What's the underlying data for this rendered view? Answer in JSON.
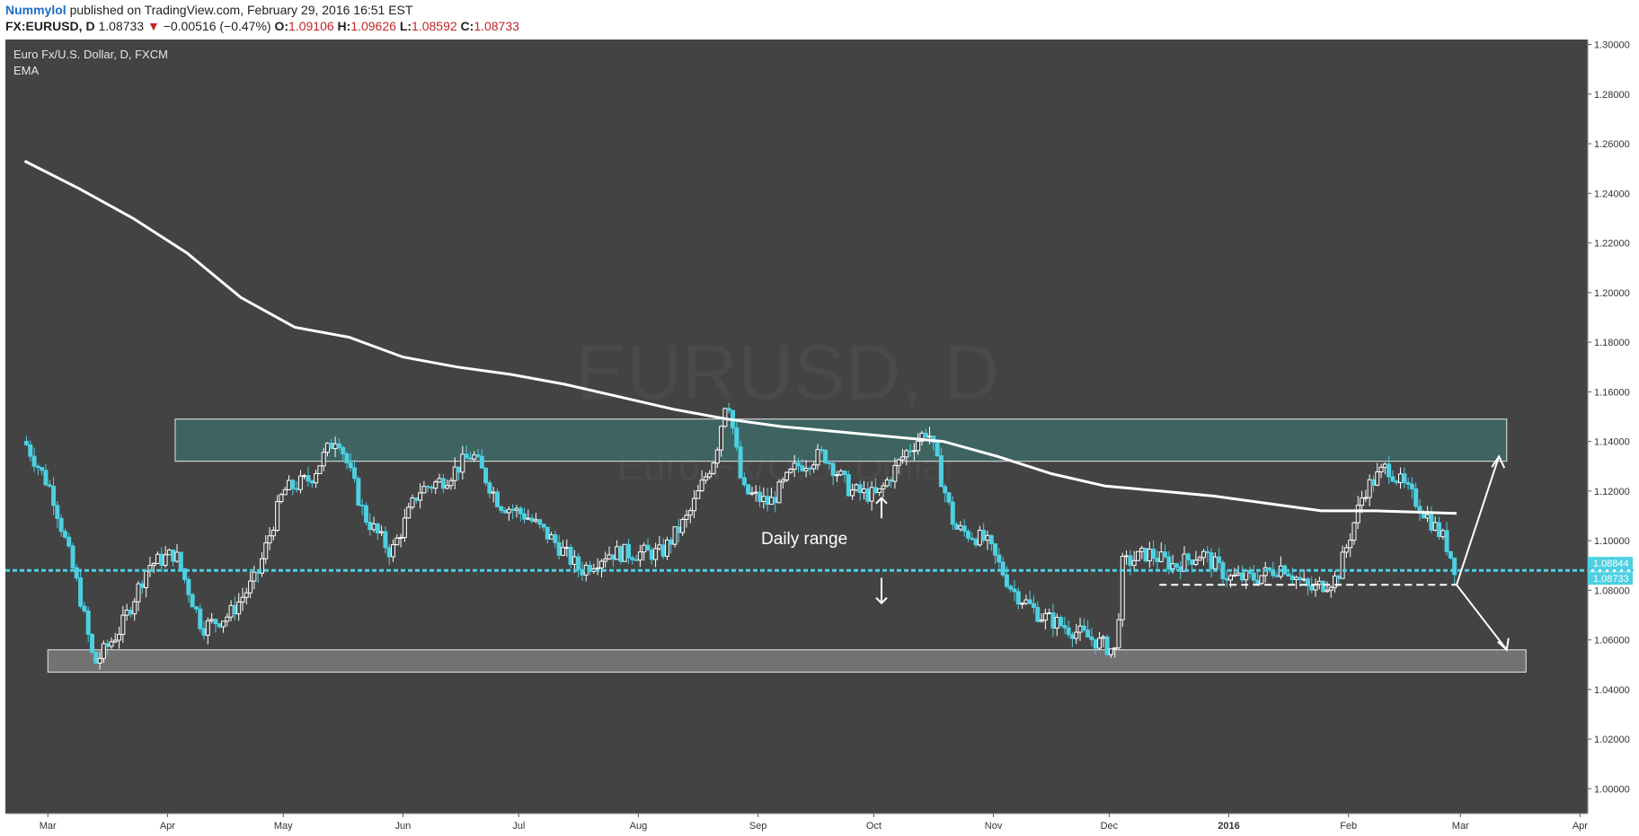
{
  "publish": {
    "author": "Nummylol",
    "text": "published on TradingView.com, February 29, 2016 16:51 EST"
  },
  "quote": {
    "symbol": "FX:EURUSD, D",
    "last": "1.08733",
    "change": "−0.00516 (−0.47%)",
    "o_label": "O:",
    "open": "1.09106",
    "h_label": "H:",
    "high": "1.09626",
    "l_label": "L:",
    "low": "1.08592",
    "c_label": "C:",
    "close": "1.08733"
  },
  "legend": {
    "title": "Euro Fx/U.S. Dollar, D, FXCM",
    "indicator": "EMA"
  },
  "watermark": {
    "symbol": "EURUSD, D",
    "name": "Euro Fx/U.S. Dollar"
  },
  "annotation": {
    "daily_range": "Daily range"
  },
  "colors": {
    "background": "#434343",
    "bull_candle": "#ffffff",
    "bear_candle": "#4dd0e1",
    "ema": "#ffffff",
    "support_line": "#4dd0e1",
    "resistance_zone": "#3d6966",
    "support_zone": "#7a7a7a"
  },
  "chart_data": {
    "type": "line",
    "series": [
      {
        "name": "EMA",
        "x": [
          "2015-02-23",
          "2015-03-09",
          "2015-03-23",
          "2015-04-06",
          "2015-04-20",
          "2015-05-04",
          "2015-05-18",
          "2015-06-01",
          "2015-06-15",
          "2015-06-29",
          "2015-07-13",
          "2015-07-27",
          "2015-08-10",
          "2015-08-24",
          "2015-09-07",
          "2015-09-21",
          "2015-10-05",
          "2015-10-19",
          "2015-11-02",
          "2015-11-16",
          "2015-11-30",
          "2015-12-14",
          "2015-12-28",
          "2016-01-11",
          "2016-01-25",
          "2016-02-08",
          "2016-02-29"
        ],
        "y": [
          1.253,
          1.242,
          1.23,
          1.216,
          1.198,
          1.186,
          1.182,
          1.174,
          1.17,
          1.167,
          1.163,
          1.158,
          1.153,
          1.149,
          1.146,
          1.144,
          1.142,
          1.14,
          1.134,
          1.127,
          1.122,
          1.12,
          1.118,
          1.115,
          1.112,
          1.112,
          1.111
        ]
      },
      {
        "name": "Price",
        "x": [
          "2015-02-23",
          "2015-03-02",
          "2015-03-09",
          "2015-03-13",
          "2015-03-20",
          "2015-03-27",
          "2015-04-03",
          "2015-04-10",
          "2015-04-17",
          "2015-04-24",
          "2015-05-01",
          "2015-05-08",
          "2015-05-15",
          "2015-05-22",
          "2015-05-29",
          "2015-06-05",
          "2015-06-12",
          "2015-06-19",
          "2015-06-26",
          "2015-07-03",
          "2015-07-10",
          "2015-07-17",
          "2015-07-24",
          "2015-07-31",
          "2015-08-07",
          "2015-08-14",
          "2015-08-21",
          "2015-08-24",
          "2015-08-28",
          "2015-09-04",
          "2015-09-11",
          "2015-09-18",
          "2015-09-25",
          "2015-10-02",
          "2015-10-09",
          "2015-10-15",
          "2015-10-22",
          "2015-10-30",
          "2015-11-06",
          "2015-11-13",
          "2015-11-20",
          "2015-11-27",
          "2015-12-03",
          "2015-12-04",
          "2015-12-11",
          "2015-12-18",
          "2015-12-25",
          "2016-01-01",
          "2016-01-08",
          "2016-01-15",
          "2016-01-22",
          "2016-01-29",
          "2016-02-05",
          "2016-02-11",
          "2016-02-19",
          "2016-02-26",
          "2016-02-29"
        ],
        "y": [
          1.14,
          1.12,
          1.08,
          1.05,
          1.065,
          1.09,
          1.095,
          1.065,
          1.07,
          1.085,
          1.12,
          1.125,
          1.143,
          1.11,
          1.095,
          1.12,
          1.125,
          1.135,
          1.115,
          1.11,
          1.1,
          1.088,
          1.095,
          1.095,
          1.095,
          1.11,
          1.135,
          1.16,
          1.12,
          1.115,
          1.13,
          1.135,
          1.12,
          1.118,
          1.135,
          1.145,
          1.105,
          1.1,
          1.08,
          1.07,
          1.065,
          1.06,
          1.055,
          1.09,
          1.095,
          1.09,
          1.095,
          1.085,
          1.085,
          1.09,
          1.08,
          1.085,
          1.12,
          1.13,
          1.115,
          1.1,
          1.0873
        ]
      }
    ],
    "x_tick_labels": [
      "Mar",
      "Apr",
      "May",
      "Jun",
      "Jul",
      "Aug",
      "Sep",
      "Oct",
      "Nov",
      "Dec",
      "2016",
      "Feb",
      "Mar",
      "Apr"
    ],
    "y_tick_labels": [
      "1.30000",
      "1.28000",
      "1.26000",
      "1.24000",
      "1.22000",
      "1.20000",
      "1.18000",
      "1.16000",
      "1.14000",
      "1.12000",
      "1.10000",
      "1.08000",
      "1.06000",
      "1.04000",
      "1.02000",
      "1.00000"
    ],
    "ylim": [
      0.99,
      1.302
    ],
    "price_labels": {
      "support": "1.08844",
      "last": "1.08733"
    },
    "zones": [
      {
        "label": "",
        "y_low": 1.132,
        "y_high": 1.149,
        "x_start": "2015-04-03",
        "x_end": "2016-03-13"
      },
      {
        "label": "",
        "y_low": 1.047,
        "y_high": 1.056,
        "x_start": "2015-03-01",
        "x_end": "2016-03-18"
      }
    ],
    "levels": [
      {
        "y": 1.088,
        "x_start": "2015-02-18",
        "x_end": "2016-04-30"
      },
      {
        "y": 1.0822,
        "x_start": "2015-12-14",
        "x_end": "2016-02-29"
      }
    ],
    "grid": false,
    "legend": "top-left"
  }
}
